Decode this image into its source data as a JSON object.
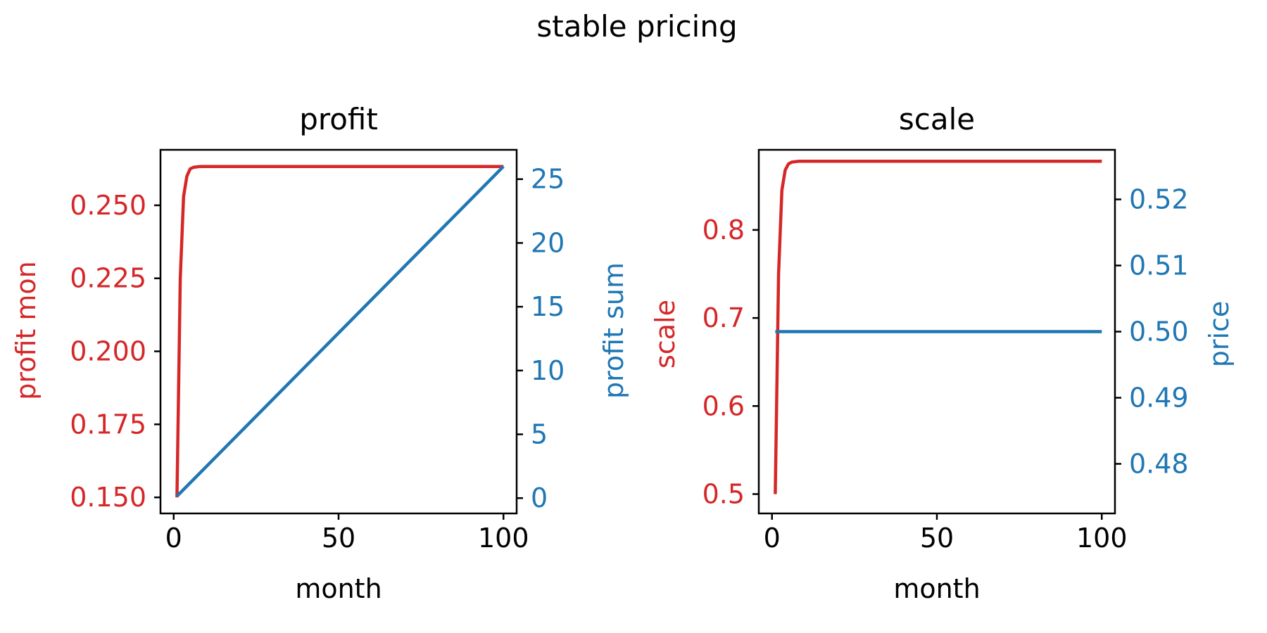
{
  "figure": {
    "suptitle": "stable pricing"
  },
  "colors": {
    "red": "#d62728",
    "blue": "#1f77b4",
    "axis": "#000000"
  },
  "chart_data": [
    {
      "type": "line",
      "title": "profit",
      "xlabel": "month",
      "ylabel_left": "profit mon",
      "ylabel_right": "profit sum",
      "xlim": [
        -4,
        104
      ],
      "xticks": [
        0,
        50,
        100
      ],
      "ylim_left": [
        0.1445,
        0.269
      ],
      "yticks_left": [
        0.15,
        0.175,
        0.2,
        0.225,
        0.25
      ],
      "ytick_labels_left": [
        "0.150",
        "0.175",
        "0.200",
        "0.225",
        "0.250"
      ],
      "ylim_right": [
        -1.2,
        27.3
      ],
      "yticks_right": [
        0,
        5,
        10,
        15,
        20,
        25
      ],
      "grid": false,
      "series": [
        {
          "name": "profit mon",
          "axis": "left",
          "color": "#d62728",
          "x": [
            1,
            2,
            3,
            4,
            5,
            6,
            8,
            10,
            20,
            40,
            60,
            80,
            100
          ],
          "y": [
            0.15,
            0.225,
            0.253,
            0.26,
            0.2625,
            0.263,
            0.2633,
            0.2633,
            0.2633,
            0.2633,
            0.2633,
            0.2633,
            0.2633
          ]
        },
        {
          "name": "profit sum",
          "axis": "right",
          "color": "#1f77b4",
          "x": [
            1,
            100
          ],
          "y": [
            0.15,
            26.0
          ]
        }
      ]
    },
    {
      "type": "line",
      "title": "scale",
      "xlabel": "month",
      "ylabel_left": "scale",
      "ylabel_right": "price",
      "xlim": [
        -4,
        104
      ],
      "xticks": [
        0,
        50,
        100
      ],
      "ylim_left": [
        0.478,
        0.891
      ],
      "yticks_left": [
        0.5,
        0.6,
        0.7,
        0.8
      ],
      "ytick_labels_left": [
        "0.5",
        "0.6",
        "0.7",
        "0.8"
      ],
      "ylim_right": [
        0.4725,
        0.5275
      ],
      "yticks_right": [
        0.48,
        0.49,
        0.5,
        0.51,
        0.52
      ],
      "ytick_labels_right": [
        "0.48",
        "0.49",
        "0.50",
        "0.51",
        "0.52"
      ],
      "grid": false,
      "series": [
        {
          "name": "scale",
          "axis": "left",
          "color": "#d62728",
          "x": [
            1,
            2,
            3,
            4,
            5,
            6,
            8,
            10,
            20,
            40,
            60,
            80,
            100
          ],
          "y": [
            0.5,
            0.75,
            0.845,
            0.868,
            0.875,
            0.877,
            0.878,
            0.878,
            0.878,
            0.878,
            0.878,
            0.878,
            0.878
          ]
        },
        {
          "name": "price",
          "axis": "right",
          "color": "#1f77b4",
          "x": [
            1,
            100
          ],
          "y": [
            0.5,
            0.5
          ]
        }
      ]
    }
  ]
}
